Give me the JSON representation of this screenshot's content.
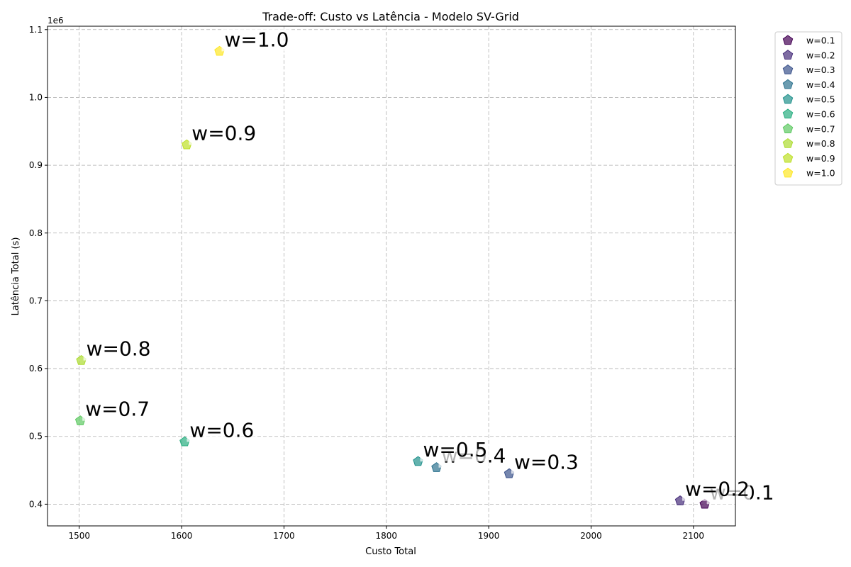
{
  "chart_data": {
    "type": "scatter",
    "title": "Trade-off: Custo vs Latência - Modelo SV-Grid",
    "xlabel": "Custo Total",
    "ylabel": "Latência Total (s)",
    "y_offset_label": "1e6",
    "xlim": [
      1469,
      2141
    ],
    "ylim": [
      0.368,
      1.105
    ],
    "x_ticks": [
      1500,
      1600,
      1700,
      1800,
      1900,
      2000,
      2100
    ],
    "y_ticks": [
      0.4,
      0.5,
      0.6,
      0.7,
      0.8,
      0.9,
      1.0,
      1.1
    ],
    "x_tick_labels": [
      "1500",
      "1600",
      "1700",
      "1800",
      "1900",
      "2000",
      "2100"
    ],
    "y_tick_labels": [
      "0.4",
      "0.5",
      "0.6",
      "0.7",
      "0.8",
      "0.9",
      "1.0",
      "1.1"
    ],
    "grid": true,
    "legend_position": "outside-top-right",
    "marker": "pentagon",
    "series": [
      {
        "name": "w=0.1",
        "x": 2111,
        "y": 0.4,
        "color": "#440154",
        "annotation": "w=0.1"
      },
      {
        "name": "w=0.2",
        "x": 2087,
        "y": 0.405,
        "color": "#472d7b",
        "annotation": "w=0.2"
      },
      {
        "name": "w=0.3",
        "x": 1920,
        "y": 0.445,
        "color": "#3b528b",
        "annotation": "w=0.3"
      },
      {
        "name": "w=0.4",
        "x": 1849,
        "y": 0.454,
        "color": "#2c728e",
        "annotation": "w=0.4"
      },
      {
        "name": "w=0.5",
        "x": 1831,
        "y": 0.463,
        "color": "#21918c",
        "annotation": "w=0.5"
      },
      {
        "name": "w=0.6",
        "x": 1603,
        "y": 0.492,
        "color": "#28ae80",
        "annotation": "w=0.6"
      },
      {
        "name": "w=0.7",
        "x": 1501,
        "y": 0.523,
        "color": "#5ec962",
        "annotation": "w=0.7"
      },
      {
        "name": "w=0.8",
        "x": 1502,
        "y": 0.612,
        "color": "#addc30",
        "annotation": "w=0.8"
      },
      {
        "name": "w=0.9",
        "x": 1605,
        "y": 0.93,
        "color": "#bddf26",
        "annotation": "w=0.9"
      },
      {
        "name": "w=1.0",
        "x": 1637,
        "y": 1.068,
        "color": "#fde725",
        "annotation": "w=1.0"
      }
    ]
  }
}
